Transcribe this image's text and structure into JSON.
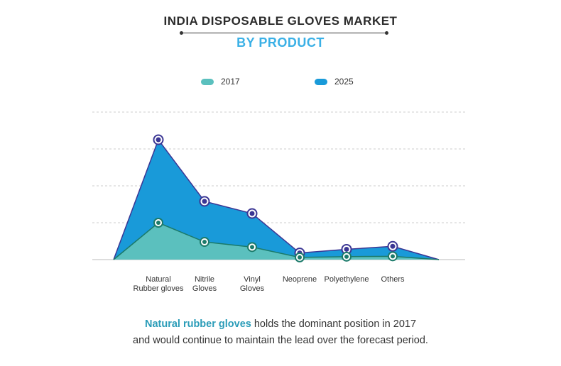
{
  "title": "INDIA DISPOSABLE GLOVES MARKET",
  "subtitle": "BY PRODUCT",
  "caption": {
    "highlight": "Natural rubber gloves",
    "line1_rest": " holds the dominant position in 2017",
    "line2": "and would continue to maintain the lead over the forecast period."
  },
  "colors": {
    "s2017": "#5bc0be",
    "s2025": "#199ad9",
    "line2017": "#1b7a6a",
    "line2025": "#3b3694",
    "grid": "#cccccc"
  },
  "chart_data": {
    "type": "area",
    "title": "INDIA DISPOSABLE GLOVES MARKET BY PRODUCT",
    "categories": [
      "Natural Rubber gloves",
      "Nitrile Gloves",
      "Vinyl Gloves",
      "Neoprene",
      "Polyethylene",
      "Others"
    ],
    "category_labels": [
      [
        "Natural",
        "Rubber gloves"
      ],
      [
        "Nitrile",
        "Gloves"
      ],
      [
        "Vinyl",
        "Gloves"
      ],
      [
        "Neoprene"
      ],
      [
        "Polyethylene"
      ],
      [
        "Others"
      ]
    ],
    "series": [
      {
        "name": "2017",
        "values": [
          1.0,
          0.48,
          0.34,
          0.06,
          0.08,
          0.09
        ]
      },
      {
        "name": "2025",
        "values": [
          3.25,
          1.58,
          1.25,
          0.18,
          0.28,
          0.36
        ]
      }
    ],
    "ylim": [
      0,
      4
    ],
    "gridlines": 4,
    "legend": "top",
    "xlabel": "",
    "ylabel": ""
  }
}
